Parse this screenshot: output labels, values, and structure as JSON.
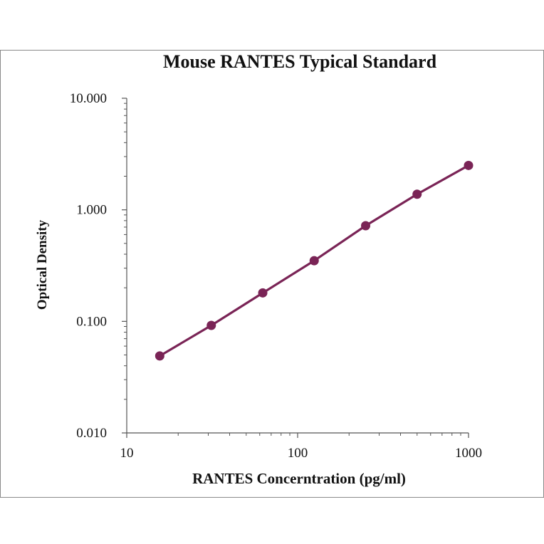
{
  "chart_data": {
    "type": "line",
    "title": "Mouse RANTES Typical Standard",
    "xlabel": "RANTES Concerntration (pg/ml)",
    "ylabel": "Optical Density",
    "x_scale": "log",
    "y_scale": "log",
    "xlim": [
      10,
      1000
    ],
    "ylim": [
      0.01,
      10
    ],
    "x_ticks": [
      "10",
      "100",
      "1000"
    ],
    "y_ticks": [
      "10.000",
      "1.000",
      "0.100",
      "0.010"
    ],
    "grid": false,
    "series": [
      {
        "x": [
          15.6,
          31.25,
          62.5,
          125,
          250,
          500,
          1000
        ],
        "y": [
          0.049,
          0.092,
          0.18,
          0.35,
          0.72,
          1.38,
          2.5
        ],
        "color": "#7a2456"
      }
    ]
  }
}
